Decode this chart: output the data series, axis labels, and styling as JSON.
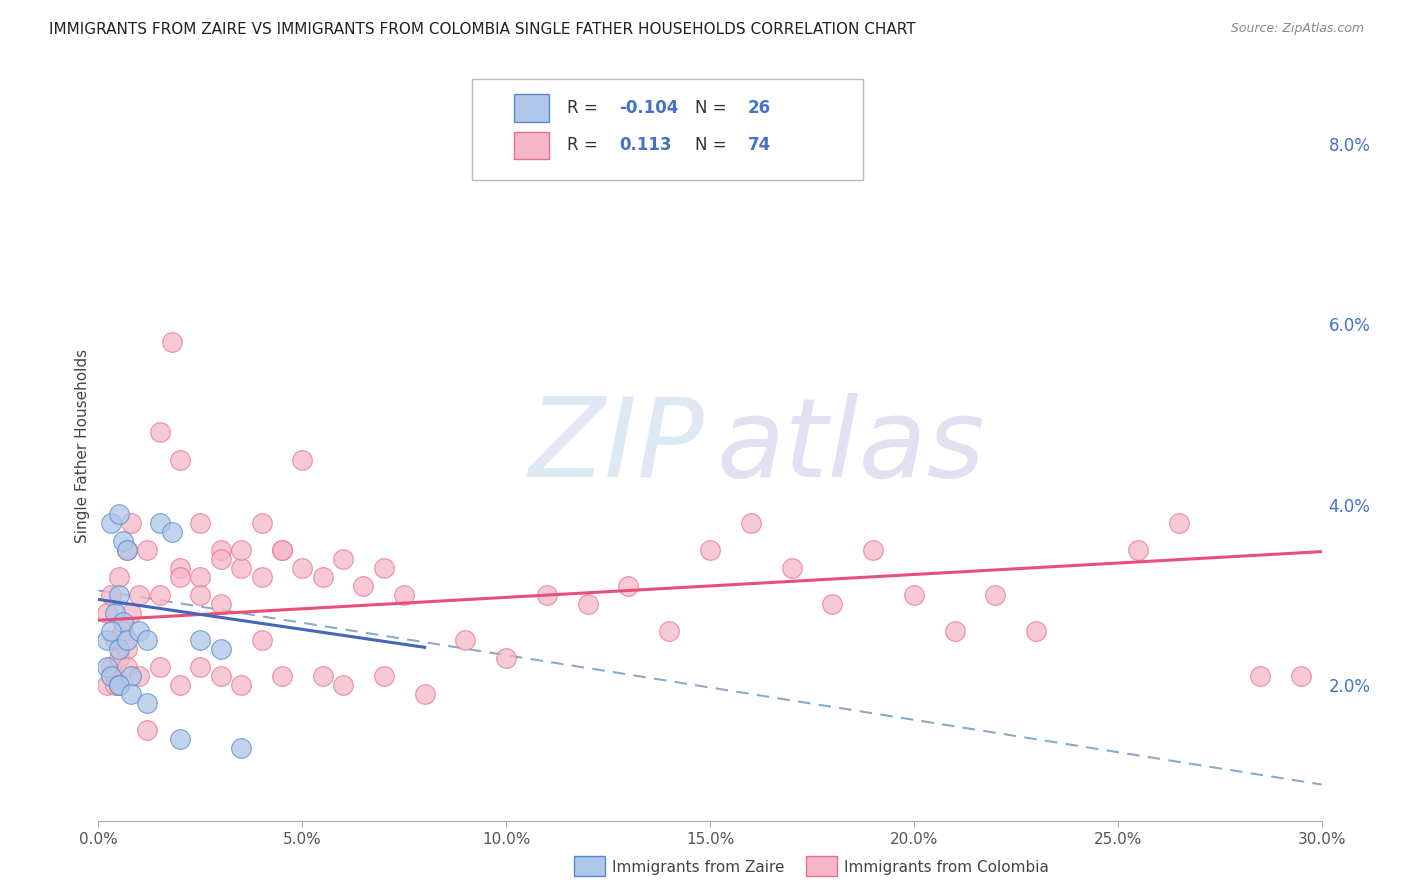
{
  "title": "IMMIGRANTS FROM ZAIRE VS IMMIGRANTS FROM COLOMBIA SINGLE FATHER HOUSEHOLDS CORRELATION CHART",
  "source": "Source: ZipAtlas.com",
  "ylabel": "Single Father Households",
  "x_tick_labels": [
    "0.0%",
    "5.0%",
    "10.0%",
    "15.0%",
    "20.0%",
    "25.0%",
    "30.0%"
  ],
  "x_tick_values": [
    0.0,
    5.0,
    10.0,
    15.0,
    20.0,
    25.0,
    30.0
  ],
  "y_tick_labels_right": [
    "2.0%",
    "4.0%",
    "6.0%",
    "8.0%"
  ],
  "y_tick_values": [
    2.0,
    4.0,
    6.0,
    8.0
  ],
  "xlim": [
    0.0,
    30.0
  ],
  "ylim": [
    0.5,
    8.8
  ],
  "zaire_color": "#aec6e8",
  "colombia_color": "#f5b8c8",
  "zaire_edge_color": "#5588cc",
  "colombia_edge_color": "#e87090",
  "zaire_line_color": "#4466bb",
  "colombia_line_color": "#e8507a",
  "dashed_line_color": "#88aacc",
  "r_zaire": "-0.104",
  "n_zaire": "26",
  "r_colombia": "0.113",
  "n_colombia": "74",
  "zaire_points": [
    [
      0.3,
      3.8
    ],
    [
      0.5,
      3.9
    ],
    [
      0.6,
      3.6
    ],
    [
      0.7,
      3.5
    ],
    [
      0.4,
      2.8
    ],
    [
      0.5,
      3.0
    ],
    [
      0.6,
      2.7
    ],
    [
      0.2,
      2.5
    ],
    [
      0.3,
      2.6
    ],
    [
      0.5,
      2.4
    ],
    [
      0.7,
      2.5
    ],
    [
      0.2,
      2.2
    ],
    [
      0.3,
      2.1
    ],
    [
      0.5,
      2.0
    ],
    [
      0.8,
      2.1
    ],
    [
      1.5,
      3.8
    ],
    [
      1.8,
      3.7
    ],
    [
      1.0,
      2.6
    ],
    [
      1.2,
      2.5
    ],
    [
      0.5,
      2.0
    ],
    [
      0.8,
      1.9
    ],
    [
      1.2,
      1.8
    ],
    [
      2.5,
      2.5
    ],
    [
      3.0,
      2.4
    ],
    [
      2.0,
      1.4
    ],
    [
      3.5,
      1.3
    ]
  ],
  "colombia_points": [
    [
      0.2,
      2.8
    ],
    [
      0.3,
      3.0
    ],
    [
      0.5,
      3.2
    ],
    [
      0.7,
      3.5
    ],
    [
      0.8,
      3.8
    ],
    [
      0.3,
      2.2
    ],
    [
      0.4,
      2.5
    ],
    [
      0.6,
      2.6
    ],
    [
      0.8,
      2.8
    ],
    [
      1.0,
      3.0
    ],
    [
      0.2,
      2.0
    ],
    [
      0.4,
      2.1
    ],
    [
      0.5,
      2.3
    ],
    [
      0.7,
      2.4
    ],
    [
      1.2,
      3.5
    ],
    [
      1.5,
      4.8
    ],
    [
      1.8,
      5.8
    ],
    [
      2.0,
      4.5
    ],
    [
      2.5,
      3.8
    ],
    [
      3.0,
      3.5
    ],
    [
      2.0,
      3.3
    ],
    [
      2.5,
      3.2
    ],
    [
      3.0,
      3.4
    ],
    [
      3.5,
      3.3
    ],
    [
      4.0,
      3.2
    ],
    [
      4.5,
      3.5
    ],
    [
      5.0,
      3.3
    ],
    [
      5.5,
      3.2
    ],
    [
      6.0,
      3.4
    ],
    [
      6.5,
      3.1
    ],
    [
      7.0,
      3.3
    ],
    [
      7.5,
      3.0
    ],
    [
      1.5,
      3.0
    ],
    [
      2.0,
      3.2
    ],
    [
      2.5,
      3.0
    ],
    [
      3.0,
      2.9
    ],
    [
      3.5,
      3.5
    ],
    [
      4.0,
      3.8
    ],
    [
      4.5,
      3.5
    ],
    [
      5.0,
      4.5
    ],
    [
      0.4,
      2.0
    ],
    [
      0.7,
      2.2
    ],
    [
      1.0,
      2.1
    ],
    [
      1.5,
      2.2
    ],
    [
      2.0,
      2.0
    ],
    [
      2.5,
      2.2
    ],
    [
      3.0,
      2.1
    ],
    [
      3.5,
      2.0
    ],
    [
      4.0,
      2.5
    ],
    [
      4.5,
      2.1
    ],
    [
      5.5,
      2.1
    ],
    [
      6.0,
      2.0
    ],
    [
      7.0,
      2.1
    ],
    [
      8.0,
      1.9
    ],
    [
      9.0,
      2.5
    ],
    [
      10.0,
      2.3
    ],
    [
      11.0,
      3.0
    ],
    [
      12.0,
      2.9
    ],
    [
      13.0,
      3.1
    ],
    [
      14.0,
      2.6
    ],
    [
      15.0,
      3.5
    ],
    [
      16.0,
      3.8
    ],
    [
      17.0,
      3.3
    ],
    [
      18.0,
      2.9
    ],
    [
      19.0,
      3.5
    ],
    [
      20.0,
      3.0
    ],
    [
      21.0,
      2.6
    ],
    [
      22.0,
      3.0
    ],
    [
      23.0,
      2.6
    ],
    [
      25.5,
      3.5
    ],
    [
      26.5,
      3.8
    ],
    [
      28.5,
      2.1
    ],
    [
      29.5,
      2.1
    ],
    [
      1.2,
      1.5
    ]
  ],
  "zaire_trend_x": [
    0.0,
    8.0
  ],
  "zaire_trend_y": [
    2.95,
    2.42
  ],
  "colombia_trend_x": [
    0.0,
    30.0
  ],
  "colombia_trend_y": [
    2.72,
    3.48
  ],
  "dashed_trend_x": [
    0.0,
    30.0
  ],
  "dashed_trend_y": [
    3.05,
    0.9
  ],
  "bottom_label_zaire": "Immigrants from Zaire",
  "bottom_label_colombia": "Immigrants from Colombia",
  "background_color": "#ffffff",
  "grid_color": "#cccccc",
  "text_color": "#333333",
  "blue_label_color": "#4472c4"
}
